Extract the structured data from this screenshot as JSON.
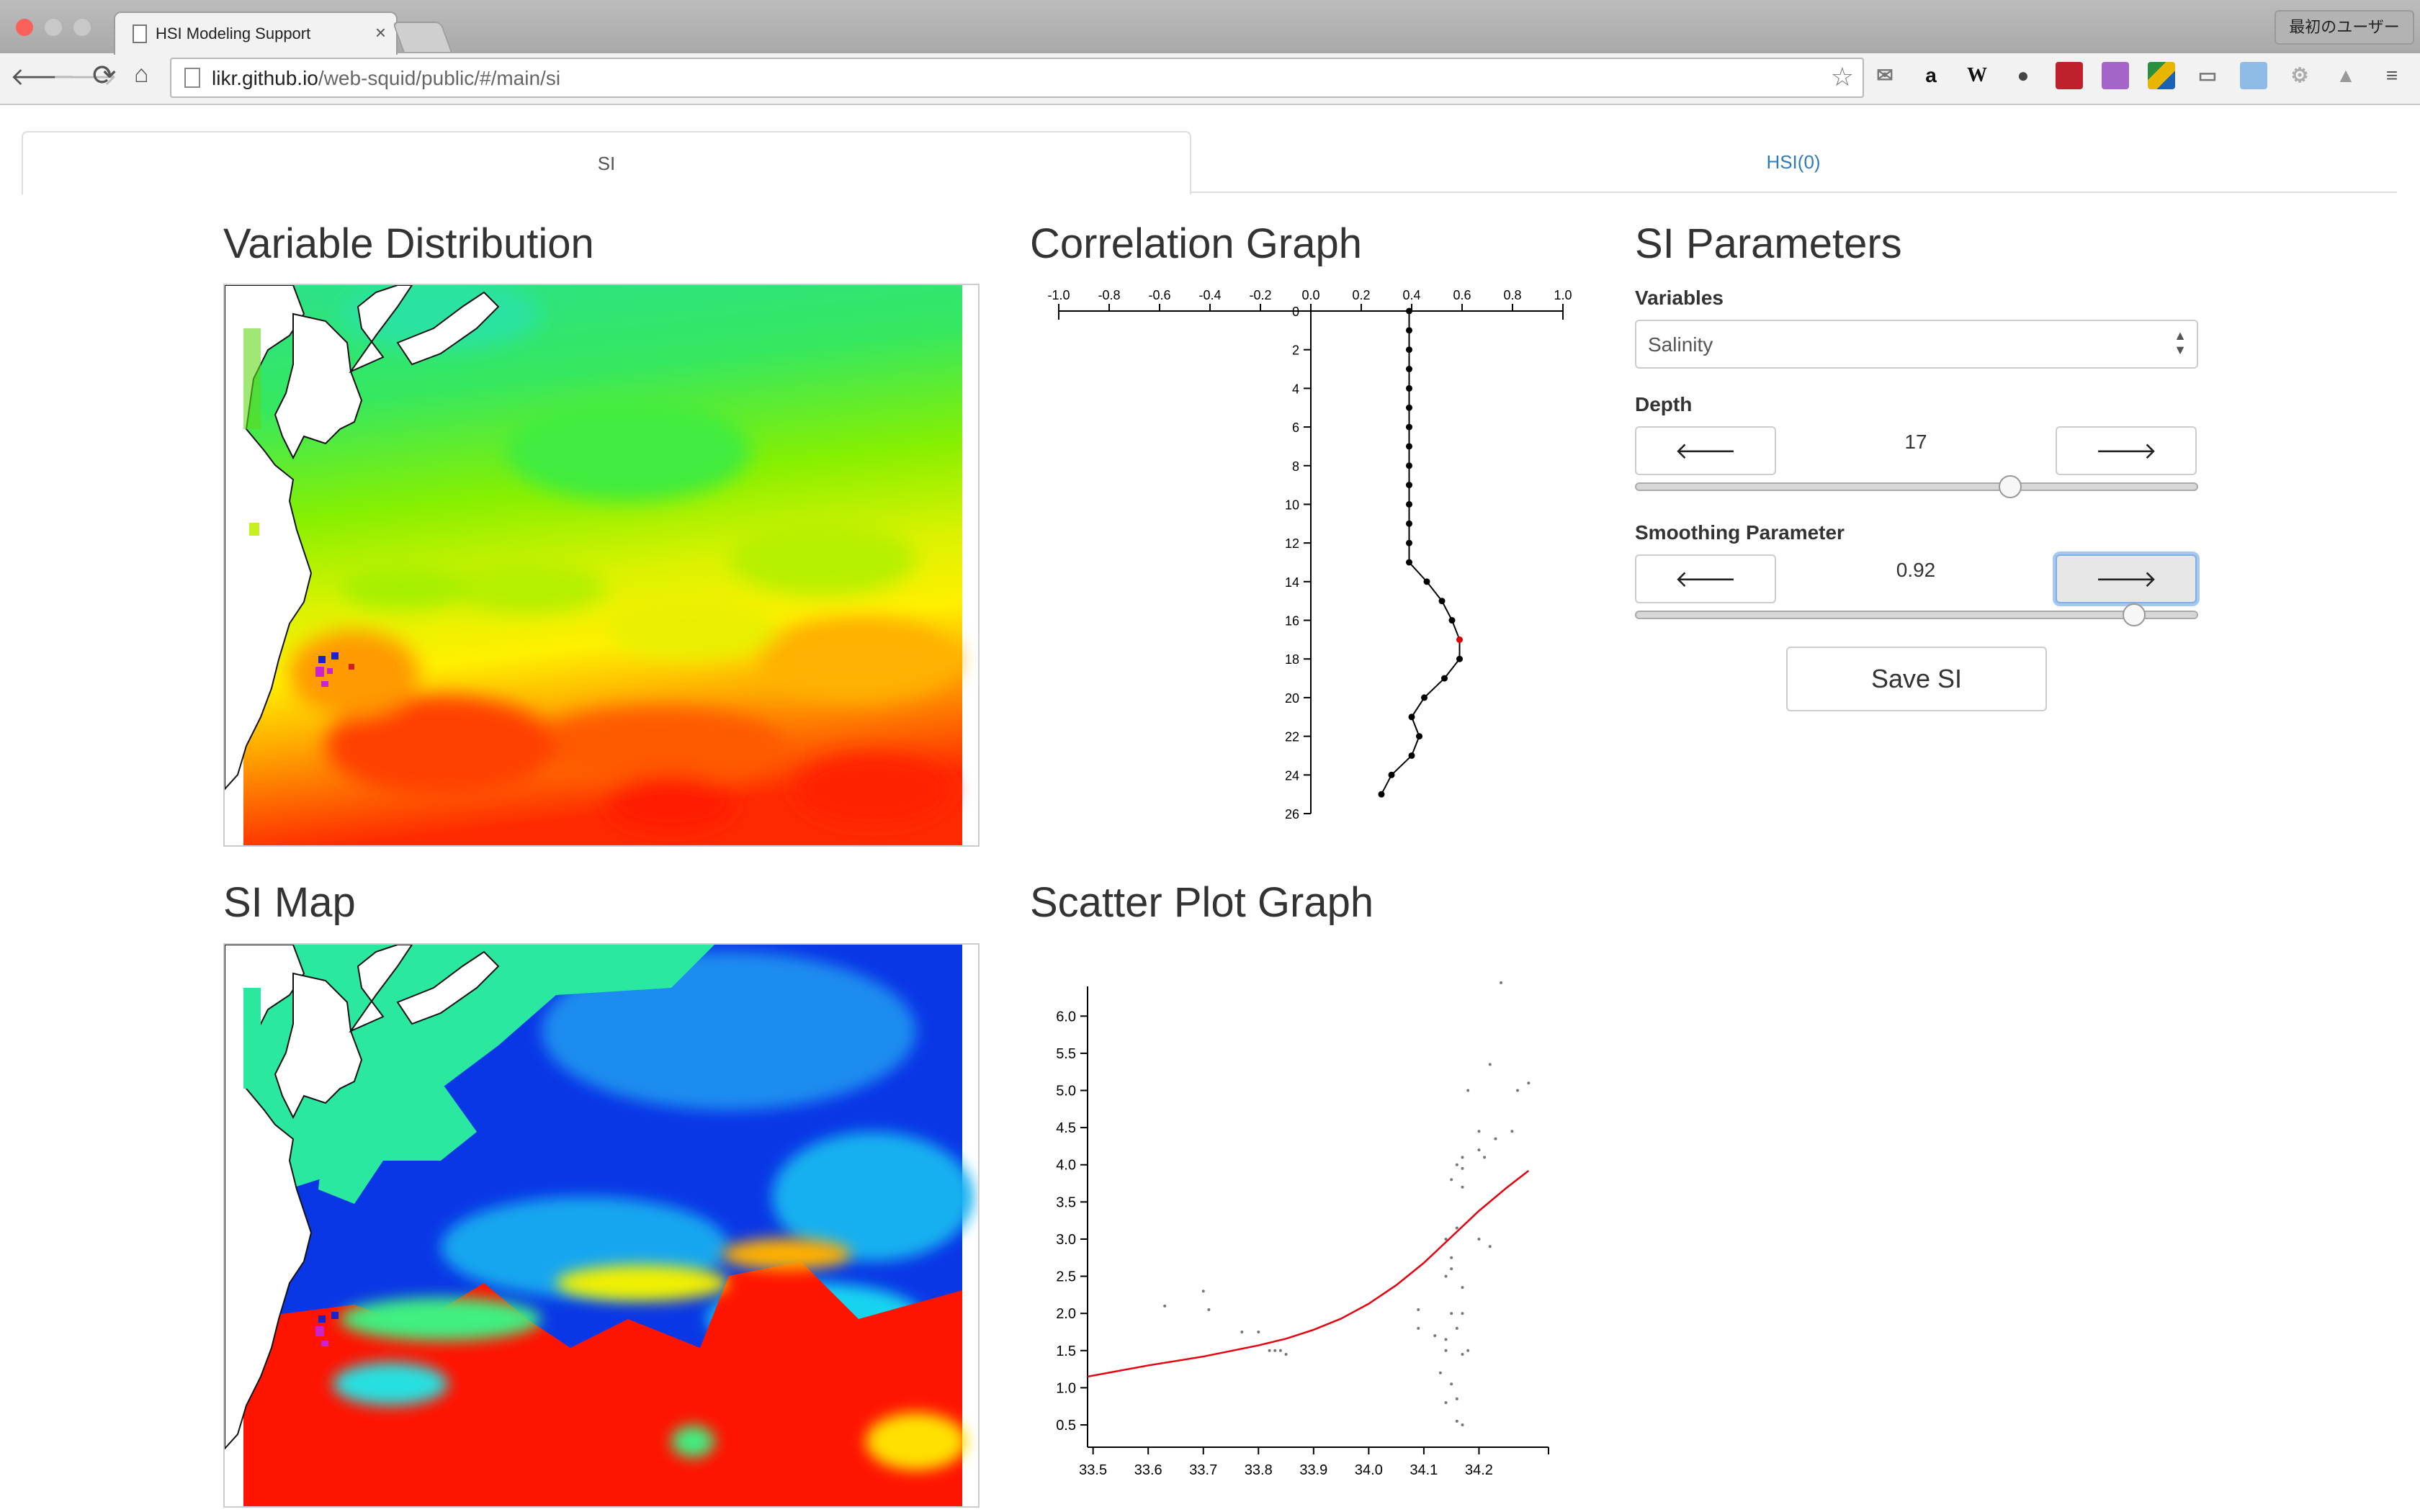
{
  "browser": {
    "tab_title": "HSI Modeling Support",
    "tab_close": "×",
    "url_host": "likr.github.io",
    "url_path": "/web-squid/public/#/main/si",
    "user_label": "最初のユーザー"
  },
  "app": {
    "tabs": [
      {
        "label": "SI",
        "active": true
      },
      {
        "label": "HSI(0)",
        "active": false
      }
    ]
  },
  "sections": {
    "variable_distribution": "Variable Distribution",
    "correlation_graph": "Correlation Graph",
    "si_parameters": "SI Parameters",
    "si_map": "SI Map",
    "scatter_plot_graph": "Scatter Plot Graph"
  },
  "params": {
    "variables_label": "Variables",
    "variables_value": "Salinity",
    "depth_label": "Depth",
    "depth_value": "17",
    "depth_slider_fraction": 0.67,
    "smoothing_label": "Smoothing Parameter",
    "smoothing_value": "0.92",
    "smoothing_slider_fraction": 0.9,
    "prev_icon": "🡐",
    "next_icon": "🡒",
    "save_label": "Save SI"
  },
  "chart_data": [
    {
      "type": "line",
      "id": "correlation",
      "x_ticks": [
        "-1.0",
        "-0.8",
        "-0.6",
        "-0.4",
        "-0.2",
        "0.0",
        "0.2",
        "0.4",
        "0.6",
        "0.8",
        "1.0"
      ],
      "y_ticks": [
        "0",
        "2",
        "4",
        "6",
        "8",
        "10",
        "12",
        "14",
        "16",
        "18",
        "20",
        "22",
        "24",
        "26"
      ],
      "xlim": [
        -1.0,
        1.0
      ],
      "ylim": [
        0,
        26
      ],
      "highlight_depth": 17,
      "series": [
        {
          "x": [
            0.39,
            0.39,
            0.39,
            0.39,
            0.39,
            0.39,
            0.39,
            0.39,
            0.39,
            0.39,
            0.39,
            0.39,
            0.39,
            0.39,
            0.46,
            0.52,
            0.56,
            0.59,
            0.59,
            0.53,
            0.45,
            0.4,
            0.43,
            0.4,
            0.32,
            0.28
          ],
          "y": [
            0,
            1,
            2,
            3,
            4,
            5,
            6,
            7,
            8,
            9,
            10,
            11,
            12,
            13,
            14,
            15,
            16,
            17,
            18,
            19,
            20,
            21,
            22,
            23,
            24,
            25
          ]
        }
      ]
    },
    {
      "type": "scatter",
      "id": "scatter",
      "x_ticks": [
        "33.5",
        "33.6",
        "33.7",
        "33.8",
        "33.9",
        "34.0",
        "34.1",
        "34.2"
      ],
      "y_ticks": [
        "0.5",
        "1.0",
        "1.5",
        "2.0",
        "2.5",
        "3.0",
        "3.5",
        "4.0",
        "4.5",
        "5.0",
        "5.5",
        "6.0"
      ],
      "xlim": [
        33.49,
        34.3
      ],
      "ylim": [
        0.2,
        6.4
      ],
      "points": [
        [
          34.24,
          6.45
        ],
        [
          34.22,
          5.35
        ],
        [
          34.18,
          5.0
        ],
        [
          34.27,
          5.0
        ],
        [
          34.29,
          5.1
        ],
        [
          34.2,
          4.45
        ],
        [
          34.23,
          4.35
        ],
        [
          34.26,
          4.45
        ],
        [
          34.2,
          4.2
        ],
        [
          34.21,
          4.1
        ],
        [
          34.17,
          4.1
        ],
        [
          34.16,
          4.0
        ],
        [
          34.17,
          3.95
        ],
        [
          34.15,
          3.8
        ],
        [
          34.17,
          3.7
        ],
        [
          34.16,
          3.15
        ],
        [
          34.14,
          3.0
        ],
        [
          34.2,
          3.0
        ],
        [
          34.15,
          2.75
        ],
        [
          34.15,
          2.6
        ],
        [
          34.14,
          2.5
        ],
        [
          34.17,
          2.35
        ],
        [
          34.15,
          2.0
        ],
        [
          34.17,
          2.0
        ],
        [
          34.16,
          1.8
        ],
        [
          34.12,
          1.7
        ],
        [
          34.14,
          1.65
        ],
        [
          34.09,
          1.8
        ],
        [
          34.14,
          1.5
        ],
        [
          34.17,
          1.45
        ],
        [
          34.18,
          1.5
        ],
        [
          34.13,
          1.2
        ],
        [
          34.15,
          1.05
        ],
        [
          34.16,
          0.85
        ],
        [
          34.14,
          0.8
        ],
        [
          34.16,
          0.55
        ],
        [
          34.17,
          0.5
        ],
        [
          34.22,
          2.9
        ],
        [
          33.63,
          2.1
        ],
        [
          33.7,
          2.3
        ],
        [
          33.71,
          2.05
        ],
        [
          33.77,
          1.75
        ],
        [
          33.8,
          1.75
        ],
        [
          33.82,
          1.5
        ],
        [
          33.83,
          1.5
        ],
        [
          33.84,
          1.5
        ],
        [
          33.85,
          1.45
        ],
        [
          34.09,
          2.05
        ]
      ],
      "fit": {
        "x": [
          33.49,
          33.6,
          33.7,
          33.8,
          33.85,
          33.9,
          33.95,
          34.0,
          34.05,
          34.1,
          34.15,
          34.2,
          34.25,
          34.29
        ],
        "y": [
          1.15,
          1.3,
          1.42,
          1.57,
          1.66,
          1.78,
          1.93,
          2.13,
          2.38,
          2.68,
          3.03,
          3.38,
          3.69,
          3.92
        ]
      },
      "fit_color": "#e8000f"
    }
  ]
}
